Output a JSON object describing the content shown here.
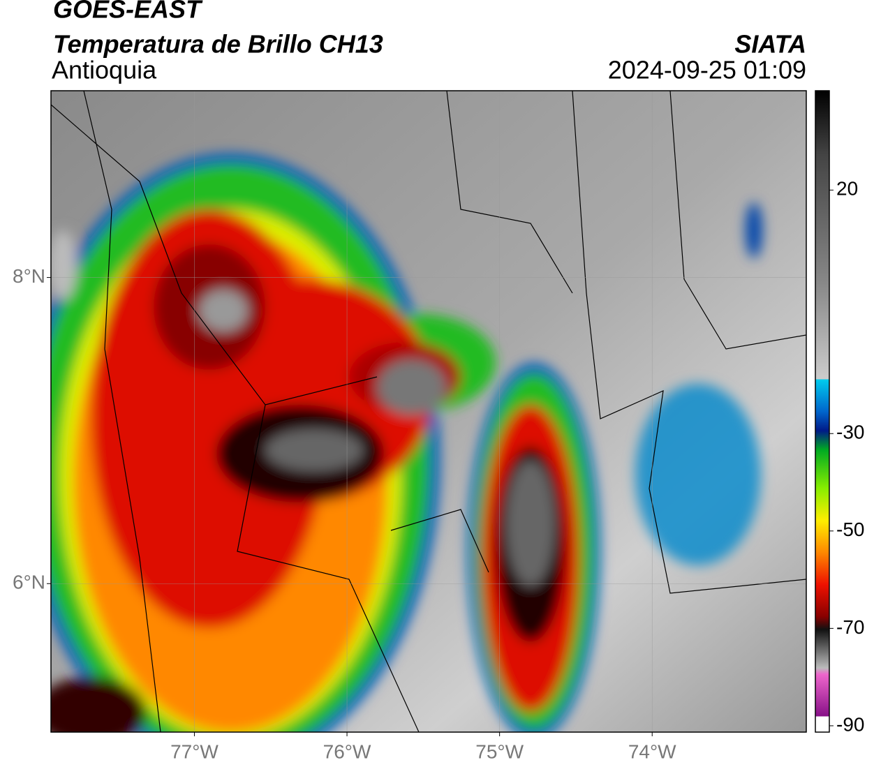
{
  "map": {
    "title": "GOES-EAST",
    "subtitle": "Temperatura de Brillo CH13",
    "region": "Antioquia",
    "source": "SIATA",
    "timestamp": "2024-09-25 01:09",
    "xlim": [
      -77.94,
      -72.99
    ],
    "ylim": [
      5.03,
      9.22
    ],
    "xticks": [
      {
        "value": -77,
        "label": "77°W"
      },
      {
        "value": -76,
        "label": "76°W"
      },
      {
        "value": -75,
        "label": "75°W"
      },
      {
        "value": -74,
        "label": "74°W"
      }
    ],
    "yticks": [
      {
        "value": 8,
        "label": "8°N"
      },
      {
        "value": 6,
        "label": "6°N"
      }
    ],
    "colorbar": {
      "lim": [
        -91.3,
        40.4
      ],
      "ticks": [
        20,
        -30,
        -50,
        -70,
        -90
      ]
    }
  }
}
